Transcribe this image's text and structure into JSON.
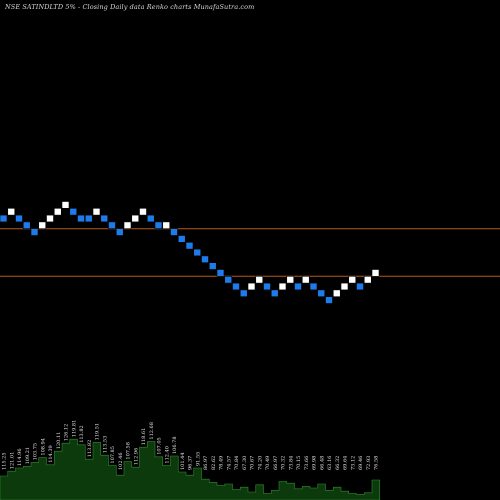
{
  "title": "NSE SATINDLTD 5% - Closing Daily data  Renko  charts MunafaSutra.com",
  "colors": {
    "background": "#000000",
    "up_brick": "#ffffff",
    "down_brick": "#1e7bea",
    "brick_border": "#000000",
    "reference_line": "#b85a1a",
    "volume_fill": "#0c3a0c",
    "volume_edge": "#2e8b2e"
  },
  "chart_data": {
    "type": "renko",
    "title": "NSE SATINDLTD 5% - Closing Daily data  Renko  charts MunafaSutra.com",
    "brick_size_label": "5%",
    "bricks": [
      {
        "level": 5,
        "direction": "down",
        "price": "115.25"
      },
      {
        "level": 6,
        "direction": "up",
        "price": "121.01"
      },
      {
        "level": 5,
        "direction": "down",
        "price": "114.96"
      },
      {
        "level": 4,
        "direction": "down",
        "price": "109.21"
      },
      {
        "level": 3,
        "direction": "down",
        "price": "103.75"
      },
      {
        "level": 4,
        "direction": "up",
        "price": "108.94"
      },
      {
        "level": 5,
        "direction": "up",
        "price": "114.39"
      },
      {
        "level": 6,
        "direction": "up",
        "price": "120.11"
      },
      {
        "level": 7,
        "direction": "up",
        "price": "126.12"
      },
      {
        "level": 6,
        "direction": "down",
        "price": "119.81"
      },
      {
        "level": 5,
        "direction": "down",
        "price": "113.82"
      },
      {
        "level": 5,
        "direction": "down",
        "price": "113.82"
      },
      {
        "level": 6,
        "direction": "up",
        "price": "119.51"
      },
      {
        "level": 5,
        "direction": "down",
        "price": "113.53"
      },
      {
        "level": 4,
        "direction": "down",
        "price": "107.85"
      },
      {
        "level": 3,
        "direction": "down",
        "price": "102.46"
      },
      {
        "level": 4,
        "direction": "up",
        "price": "107.58"
      },
      {
        "level": 5,
        "direction": "up",
        "price": "112.96"
      },
      {
        "level": 6,
        "direction": "up",
        "price": "118.61"
      },
      {
        "level": 5,
        "direction": "down",
        "price": "112.68"
      },
      {
        "level": 4,
        "direction": "down",
        "price": "107.05"
      },
      {
        "level": 4,
        "direction": "up",
        "price": "112.40"
      },
      {
        "level": 3,
        "direction": "down",
        "price": "106.78"
      },
      {
        "level": 2,
        "direction": "down",
        "price": "101.44"
      },
      {
        "level": 1,
        "direction": "down",
        "price": "96.37"
      },
      {
        "level": 0,
        "direction": "down",
        "price": "91.55"
      },
      {
        "level": -1,
        "direction": "down",
        "price": "86.97"
      },
      {
        "level": -2,
        "direction": "down",
        "price": "82.62"
      },
      {
        "level": -3,
        "direction": "down",
        "price": "78.49"
      },
      {
        "level": -4,
        "direction": "down",
        "price": "74.57"
      },
      {
        "level": -5,
        "direction": "down",
        "price": "70.84"
      },
      {
        "level": -6,
        "direction": "down",
        "price": "67.30"
      },
      {
        "level": -5,
        "direction": "up",
        "price": "70.67"
      },
      {
        "level": -4,
        "direction": "up",
        "price": "74.20"
      },
      {
        "level": -5,
        "direction": "down",
        "price": "70.49"
      },
      {
        "level": -6,
        "direction": "down",
        "price": "66.97"
      },
      {
        "level": -5,
        "direction": "up",
        "price": "70.32"
      },
      {
        "level": -4,
        "direction": "up",
        "price": "73.84"
      },
      {
        "level": -5,
        "direction": "down",
        "price": "70.15"
      },
      {
        "level": -4,
        "direction": "up",
        "price": "73.66"
      },
      {
        "level": -5,
        "direction": "down",
        "price": "69.98"
      },
      {
        "level": -6,
        "direction": "down",
        "price": "66.48"
      },
      {
        "level": -7,
        "direction": "down",
        "price": "63.16"
      },
      {
        "level": -6,
        "direction": "up",
        "price": "66.32"
      },
      {
        "level": -5,
        "direction": "up",
        "price": "69.64"
      },
      {
        "level": -4,
        "direction": "up",
        "price": "73.12"
      },
      {
        "level": -5,
        "direction": "down",
        "price": "69.46"
      },
      {
        "level": -4,
        "direction": "up",
        "price": "72.93"
      },
      {
        "level": -3,
        "direction": "up",
        "price": "76.58"
      }
    ],
    "reference_lines": [
      {
        "at_level": 3.5
      },
      {
        "at_level": -3.5
      }
    ],
    "volume": [
      0.3,
      0.36,
      0.4,
      0.42,
      0.47,
      0.53,
      0.44,
      0.61,
      0.71,
      0.76,
      0.69,
      0.51,
      0.72,
      0.56,
      0.43,
      0.31,
      0.48,
      0.41,
      0.66,
      0.73,
      0.54,
      0.43,
      0.55,
      0.35,
      0.31,
      0.4,
      0.26,
      0.22,
      0.18,
      0.2,
      0.13,
      0.16,
      0.1,
      0.19,
      0.08,
      0.12,
      0.23,
      0.21,
      0.14,
      0.17,
      0.15,
      0.2,
      0.12,
      0.16,
      0.11,
      0.08,
      0.07,
      0.09,
      0.25
    ],
    "grid": false,
    "legend": "none"
  }
}
